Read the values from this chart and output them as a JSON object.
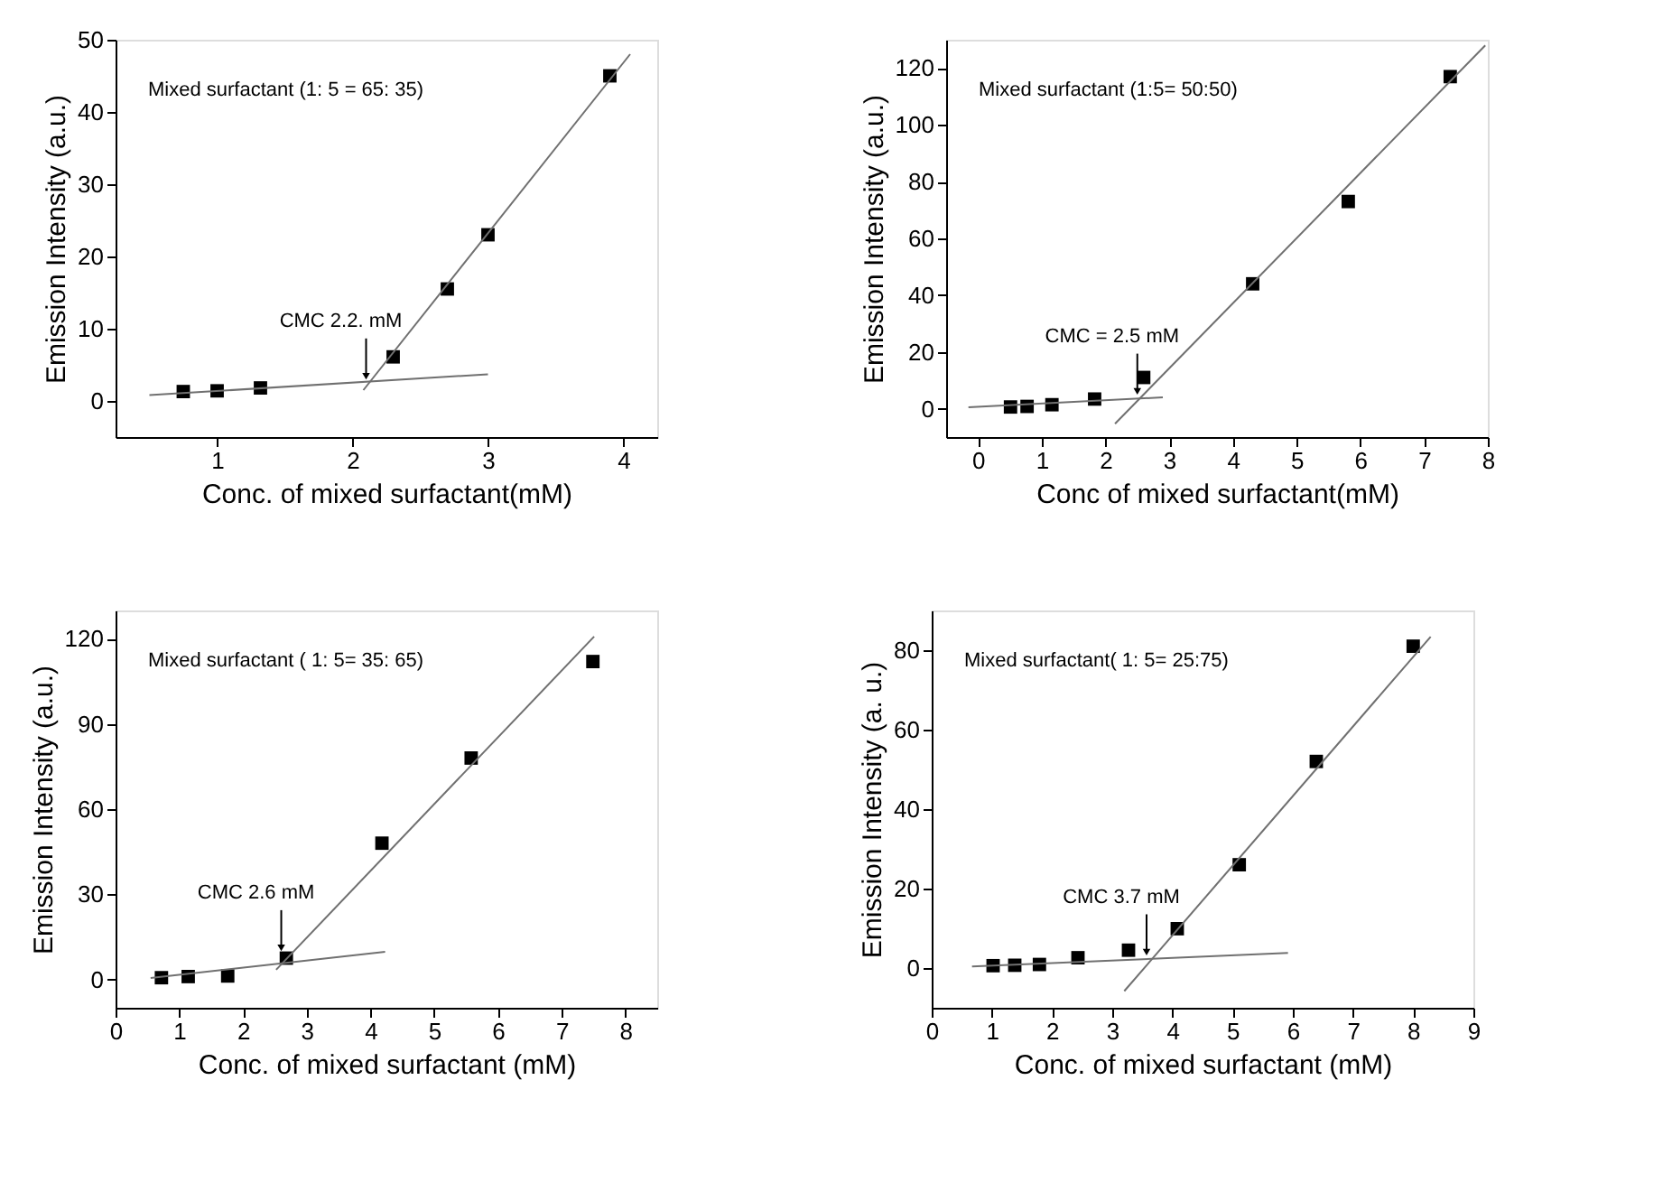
{
  "chart_data": [
    {
      "type": "scatter",
      "xlabel": "Conc. of mixed surfactant(mM)",
      "ylabel": "Emission Intensity (a.u.)",
      "xlim": [
        0.25,
        4.25
      ],
      "ylim": [
        -5,
        50
      ],
      "xticks": [
        1,
        2,
        3,
        4
      ],
      "yticks": [
        0,
        10,
        20,
        30,
        40,
        50
      ],
      "grid": false,
      "series": [
        {
          "color": "#000000",
          "marker": "square",
          "x": [
            0.75,
            1.0,
            1.32,
            2.3,
            2.7,
            3.0,
            3.9
          ],
          "values": [
            1.3,
            1.4,
            1.8,
            6.1,
            15.5,
            23,
            45
          ]
        },
        {
          "type": "line",
          "marker": "none",
          "line_style": "solid",
          "color": "#707070",
          "x": [
            0.5,
            3.0
          ],
          "values": [
            0.8,
            3.7
          ]
        },
        {
          "type": "line",
          "marker": "none",
          "line_style": "solid",
          "color": "#707070",
          "x": [
            2.08,
            4.05
          ],
          "values": [
            1.5,
            48
          ]
        }
      ],
      "annotations": [
        "Mixed surfactant (1: 5 = 65: 35)",
        {
          "text": "CMC 2.2. mM",
          "x": 2.1,
          "y": 2.6
        }
      ]
    },
    {
      "type": "scatter",
      "xlabel": "Conc of mixed surfactant(mM)",
      "ylabel": "Emission Intensity (a.u.)",
      "xlim": [
        -0.5,
        8
      ],
      "ylim": [
        -10,
        130
      ],
      "xticks": [
        0,
        1,
        2,
        3,
        4,
        5,
        6,
        7,
        8
      ],
      "yticks": [
        0,
        20,
        40,
        60,
        80,
        100,
        120
      ],
      "grid": false,
      "series": [
        {
          "color": "#000000",
          "marker": "square",
          "x": [
            0.51,
            0.77,
            1.16,
            1.83,
            2.6,
            4.31,
            5.81,
            7.41
          ],
          "values": [
            0.6,
            0.8,
            1.4,
            3.4,
            11,
            44,
            73,
            117
          ]
        },
        {
          "type": "line",
          "marker": "none",
          "line_style": "solid",
          "color": "#707070",
          "x": [
            -0.15,
            2.9
          ],
          "values": [
            0.5,
            4
          ]
        },
        {
          "type": "line",
          "marker": "none",
          "line_style": "solid",
          "color": "#707070",
          "x": [
            2.15,
            7.96
          ],
          "values": [
            -5.3,
            128
          ]
        }
      ],
      "annotations": [
        "Mixed surfactant (1:5= 50:50)",
        {
          "text": "CMC = 2.5 mM",
          "x": 2.5,
          "y": 4
        }
      ]
    },
    {
      "type": "scatter",
      "xlabel": "Conc. of mixed surfactant (mM)",
      "ylabel": "Emission Intensity (a.u.)",
      "xlim": [
        0,
        8.5
      ],
      "ylim": [
        -10,
        130
      ],
      "xticks": [
        0,
        1,
        2,
        3,
        4,
        5,
        6,
        7,
        8
      ],
      "yticks": [
        0,
        30,
        60,
        90,
        120
      ],
      "grid": false,
      "series": [
        {
          "color": "#000000",
          "marker": "square",
          "x": [
            0.72,
            1.14,
            1.76,
            2.68,
            4.18,
            5.58,
            7.49
          ],
          "values": [
            0.6,
            1,
            1.2,
            7.5,
            48,
            78,
            112
          ]
        },
        {
          "type": "line",
          "marker": "none",
          "line_style": "solid",
          "color": "#707070",
          "x": [
            0.55,
            4.23
          ],
          "values": [
            0.5,
            9.7
          ]
        },
        {
          "type": "line",
          "marker": "none",
          "line_style": "solid",
          "color": "#707070",
          "x": [
            2.52,
            7.51
          ],
          "values": [
            3.4,
            120.8
          ]
        }
      ],
      "annotations": [
        "Mixed surfactant ( 1: 5= 35: 65)",
        {
          "text": "CMC 2.6 mM",
          "x": 2.6,
          "y": 9
        }
      ]
    },
    {
      "type": "scatter",
      "xlabel": "Conc. of mixed surfactant (mM)",
      "ylabel": "Emission Intensity (a. u.)",
      "xlim": [
        0,
        9
      ],
      "ylim": [
        -10,
        90
      ],
      "xticks": [
        0,
        1,
        2,
        3,
        4,
        5,
        6,
        7,
        8,
        9
      ],
      "yticks": [
        0,
        20,
        40,
        60,
        80
      ],
      "grid": false,
      "series": [
        {
          "color": "#000000",
          "marker": "square",
          "x": [
            1.02,
            1.38,
            1.79,
            2.43,
            3.27,
            4.08,
            5.11,
            6.39,
            8.0
          ],
          "values": [
            0.6,
            0.7,
            0.9,
            2.6,
            4.5,
            9.9,
            26,
            52,
            81
          ]
        },
        {
          "type": "line",
          "marker": "none",
          "line_style": "solid",
          "color": "#707070",
          "x": [
            0.67,
            5.92
          ],
          "values": [
            0.4,
            3.8
          ]
        },
        {
          "type": "line",
          "marker": "none",
          "line_style": "solid",
          "color": "#707070",
          "x": [
            3.2,
            8.29
          ],
          "values": [
            -5.8,
            83.4
          ]
        }
      ],
      "annotations": [
        "Mixed surfactant( 1: 5= 25:75)",
        {
          "text": "CMC 3.7 mM",
          "x": 3.57,
          "y": 2.5
        }
      ]
    }
  ]
}
